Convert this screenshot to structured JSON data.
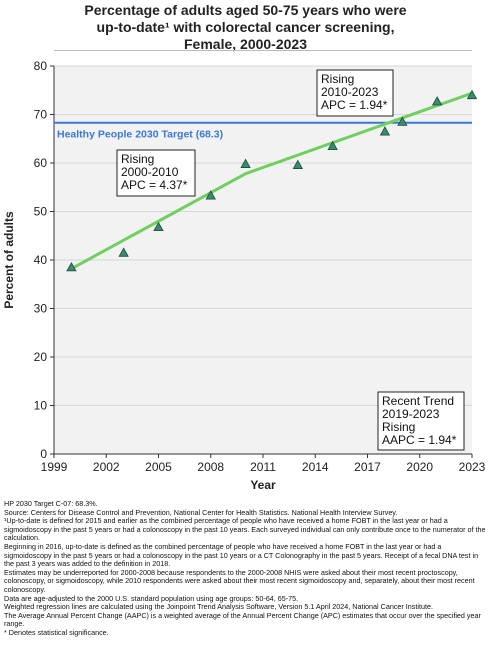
{
  "title": {
    "line1": "Percentage of adults aged 50-75 years who were",
    "line2": "up-to-date¹ with colorectal cancer screening,",
    "line3": "Female,  2000-2023"
  },
  "chart_data": {
    "type": "scatter",
    "xlabel": "Year",
    "ylabel": "Percent of adults",
    "xlim": [
      1999,
      2023
    ],
    "ylim": [
      0,
      80
    ],
    "x_ticks": [
      1999,
      2002,
      2005,
      2008,
      2011,
      2014,
      2017,
      2020,
      2023
    ],
    "y_ticks": [
      0,
      10,
      20,
      30,
      40,
      50,
      60,
      70,
      80
    ],
    "grid": "horizontal",
    "observed": {
      "x": [
        2000,
        2003,
        2005,
        2008,
        2010,
        2013,
        2015,
        2018,
        2019,
        2021,
        2023
      ],
      "y": [
        38.5,
        41.5,
        46.8,
        53.3,
        59.8,
        59.6,
        63.5,
        66.5,
        68.5,
        72.7,
        74.0
      ],
      "marker": "triangle",
      "color": "#3a8a6e"
    },
    "trend": {
      "x": [
        2000,
        2010,
        2023
      ],
      "y": [
        38.2,
        57.8,
        74.4
      ],
      "color": "#6fcf5f"
    },
    "target": {
      "label": "Healthy People 2030 Target (68.3)",
      "value": 68.3,
      "color": "#3c78d8"
    },
    "annotations": [
      {
        "lines": [
          "Rising",
          "2000-2010",
          "APC =  4.37*"
        ]
      },
      {
        "lines": [
          "Rising",
          "2010-2023",
          "APC =  1.94*"
        ]
      },
      {
        "lines": [
          "Recent Trend",
          "2019-2023",
          "Rising",
          "AAPC =  1.94*"
        ]
      }
    ]
  },
  "footnotes": [
    "HP 2030 Target C-07: 68.3%.",
    "Source: Centers for Disease Control and Prevention, National Center for Health Statistics. National Health Interview Survey.",
    "¹Up-to-date is defined for 2015 and earlier as the combined percentage of people who have received a home FOBT in the last year or had a sigmoidoscopy in the past 5 years or had a colonoscopy in the past 10 years. Each surveyed individual can only contribute once to the numerator of the calculation.",
    "Beginning in 2016, up-to-date is defined as the combined percentage of people who have received a home FOBT in the last year or had a sigmoidoscopy in the past 5 years or had a colonoscopy in the past 10 years or a CT Colonography in the past 5 years. Receipt of a fecal DNA test in the past 3 years was added to the definition in 2018.",
    "Estimates may be underreported for 2000-2008 because respondents to the 2000-2008 NHIS were asked about their most recent proctoscopy, colonoscopy, or sigmoidoscopy, while 2010 respondents were asked about their most recent sigmoidoscopy and, separately, about their most recent colonoscopy.",
    "Data are age-adjusted to the 2000 U.S. standard population using age groups: 50-64, 65-75.",
    "Weighted regression lines are calculated using the Joinpoint Trend Analysis Software, Version 5.1 April 2024, National Cancer Institute.",
    "The Average Annual Percent Change (AAPC) is a weighted average of the Annual Percent Change (APC) estimates that occur over the specified year range.",
    "* Denotes statistical significance."
  ]
}
